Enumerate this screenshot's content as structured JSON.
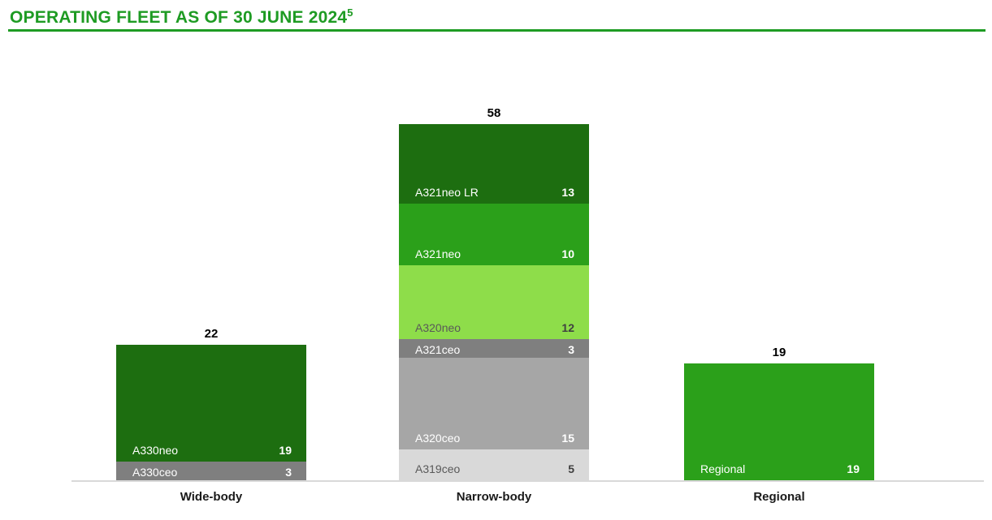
{
  "header": {
    "title": "OPERATING FLEET AS OF 30 JUNE 2024",
    "superscript": "5"
  },
  "colors": {
    "accent_green": "#1e9b23",
    "dark_green": "#1d6e10",
    "medium_green": "#2ba01a",
    "light_green": "#8edd4a",
    "dark_gray": "#7f7f7f",
    "medium_gray": "#a6a6a6",
    "light_gray": "#d9d9d9",
    "axis_line": "#d9d9d9"
  },
  "chart_data": {
    "type": "bar",
    "stacked": true,
    "orientation": "vertical",
    "title": "OPERATING FLEET AS OF 30 JUNE 2024",
    "title_footnote_superscript": "5",
    "categories": [
      "Wide-body",
      "Narrow-body",
      "Regional"
    ],
    "totals": [
      22,
      58,
      19
    ],
    "ylim": [
      0,
      60
    ],
    "grid": false,
    "legend": "none",
    "value_labels": "inside-bottom-of-segment",
    "series_by_category": [
      {
        "category": "Wide-body",
        "total": 22,
        "segments": [
          {
            "name": "A330neo",
            "value": 19,
            "color": "#1d6e10",
            "text": "light"
          },
          {
            "name": "A330ceo",
            "value": 3,
            "color": "#7f7f7f",
            "text": "light"
          }
        ]
      },
      {
        "category": "Narrow-body",
        "total": 58,
        "segments": [
          {
            "name": "A321neo LR",
            "value": 13,
            "color": "#1d6e10",
            "text": "light"
          },
          {
            "name": "A321neo",
            "value": 10,
            "color": "#2ba01a",
            "text": "light"
          },
          {
            "name": "A320neo",
            "value": 12,
            "color": "#8edd4a",
            "text": "dark"
          },
          {
            "name": "A321ceo",
            "value": 3,
            "color": "#7f7f7f",
            "text": "light"
          },
          {
            "name": "A320ceo",
            "value": 15,
            "color": "#a6a6a6",
            "text": "light"
          },
          {
            "name": "A319ceo",
            "value": 5,
            "color": "#d9d9d9",
            "text": "dark"
          }
        ]
      },
      {
        "category": "Regional",
        "total": 19,
        "segments": [
          {
            "name": "Regional",
            "value": 19,
            "color": "#2ba01a",
            "text": "light"
          }
        ]
      }
    ]
  }
}
